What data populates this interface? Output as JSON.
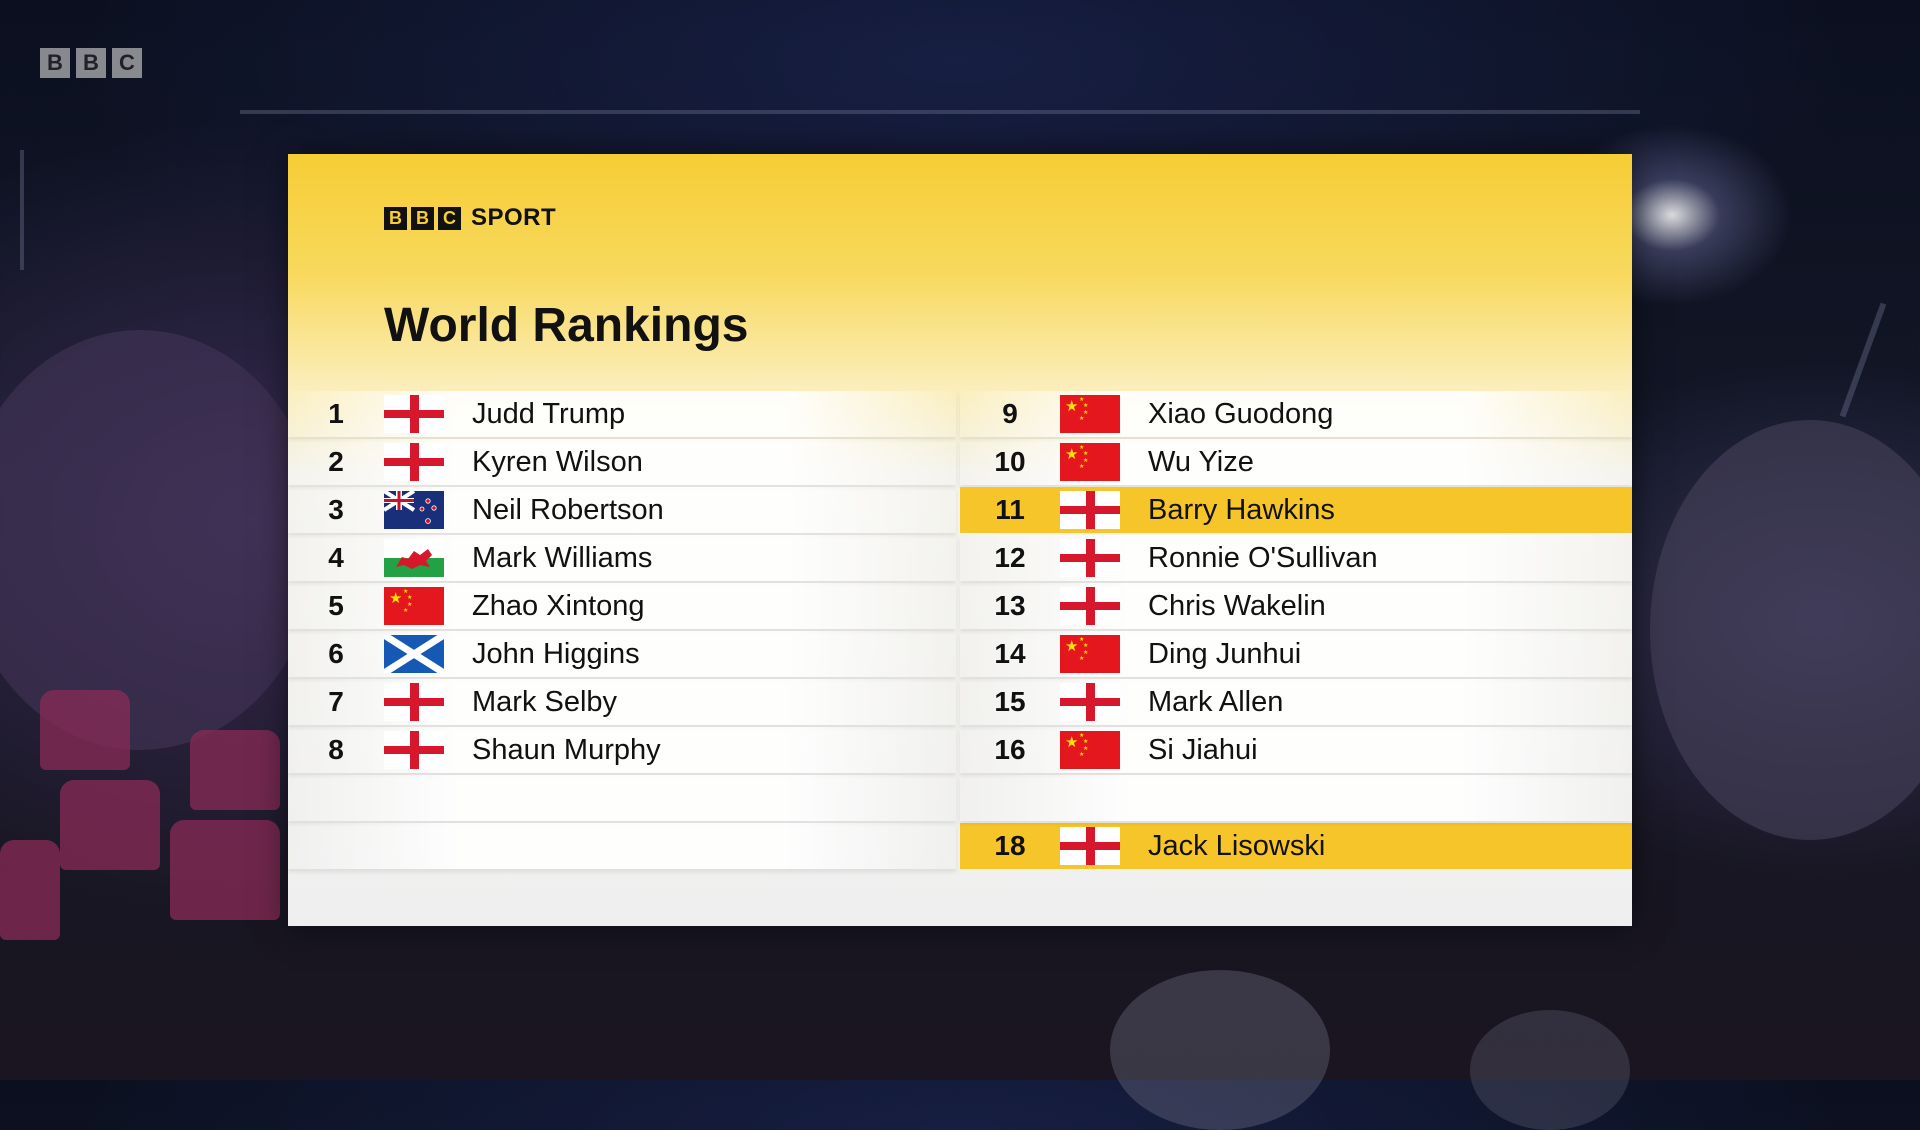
{
  "broadcaster": {
    "letters": [
      "B",
      "B",
      "C"
    ]
  },
  "panel": {
    "logo_letters": [
      "B",
      "B",
      "C"
    ],
    "logo_word": "SPORT",
    "title": "World Rankings"
  },
  "colors": {
    "accent_yellow": "#f6c52a",
    "england_red": "#d7172b",
    "china_red": "#e4161e"
  },
  "rankings_left": [
    {
      "rank": "1",
      "flag": "england-flag-icon",
      "name": "Judd Trump"
    },
    {
      "rank": "2",
      "flag": "england-flag-icon",
      "name": "Kyren Wilson"
    },
    {
      "rank": "3",
      "flag": "new-zealand-flag-icon",
      "name": "Neil Robertson"
    },
    {
      "rank": "4",
      "flag": "wales-flag-icon",
      "name": "Mark Williams"
    },
    {
      "rank": "5",
      "flag": "china-flag-icon",
      "name": "Zhao Xintong"
    },
    {
      "rank": "6",
      "flag": "scotland-flag-icon",
      "name": "John Higgins"
    },
    {
      "rank": "7",
      "flag": "england-flag-icon",
      "name": "Mark Selby"
    },
    {
      "rank": "8",
      "flag": "england-flag-icon",
      "name": "Shaun Murphy"
    }
  ],
  "rankings_right": [
    {
      "rank": "9",
      "flag": "china-flag-icon",
      "name": "Xiao Guodong",
      "highlighted": false
    },
    {
      "rank": "10",
      "flag": "china-flag-icon",
      "name": "Wu Yize",
      "highlighted": false
    },
    {
      "rank": "11",
      "flag": "england-flag-icon",
      "name": "Barry Hawkins",
      "highlighted": true
    },
    {
      "rank": "12",
      "flag": "england-flag-icon",
      "name": "Ronnie O'Sullivan",
      "highlighted": false
    },
    {
      "rank": "13",
      "flag": "england-flag-icon",
      "name": "Chris Wakelin",
      "highlighted": false
    },
    {
      "rank": "14",
      "flag": "china-flag-icon",
      "name": "Ding Junhui",
      "highlighted": false
    },
    {
      "rank": "15",
      "flag": "england-flag-icon",
      "name": "Mark Allen",
      "highlighted": false
    },
    {
      "rank": "16",
      "flag": "china-flag-icon",
      "name": "Si Jiahui",
      "highlighted": false
    },
    {
      "rank": "18",
      "flag": "england-flag-icon",
      "name": "Jack Lisowski",
      "highlighted": true
    }
  ]
}
